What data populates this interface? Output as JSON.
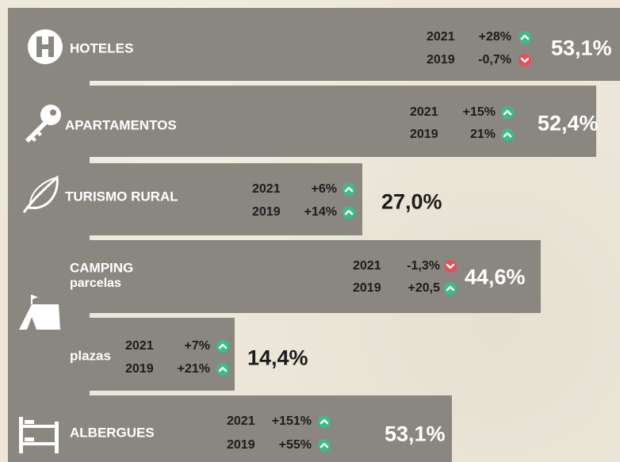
{
  "rows": [
    {
      "label": "HOTELES",
      "stats": [
        {
          "year": "2021",
          "change": "+28%",
          "trend": "up"
        },
        {
          "year": "2019",
          "change": "-0,7%",
          "trend": "down"
        }
      ],
      "value": "53,1%"
    },
    {
      "label": "APARTAMENTOS",
      "stats": [
        {
          "year": "2021",
          "change": "+15%",
          "trend": "up"
        },
        {
          "year": "2019",
          "change": "21%",
          "trend": "up"
        }
      ],
      "value": "52,4%"
    },
    {
      "label": "TURISMO RURAL",
      "stats": [
        {
          "year": "2021",
          "change": "+6%",
          "trend": "up"
        },
        {
          "year": "2019",
          "change": "+14%",
          "trend": "up"
        }
      ],
      "value": "27,0%"
    },
    {
      "label": "CAMPING",
      "sublabel": "parcelas",
      "stats": [
        {
          "year": "2021",
          "change": "-1,3%",
          "trend": "down"
        },
        {
          "year": "2019",
          "change": "+20,5",
          "trend": "up"
        }
      ],
      "value": "44,6%"
    },
    {
      "label": "plazas",
      "stats": [
        {
          "year": "2021",
          "change": "+7%",
          "trend": "up"
        },
        {
          "year": "2019",
          "change": "+21%",
          "trend": "up"
        }
      ],
      "value": "14,4%"
    },
    {
      "label": "ALBERGUES",
      "stats": [
        {
          "year": "2021",
          "change": "+151%",
          "trend": "up"
        },
        {
          "year": "2019",
          "change": "+55%",
          "trend": "up"
        }
      ],
      "value": "53,1%"
    }
  ]
}
